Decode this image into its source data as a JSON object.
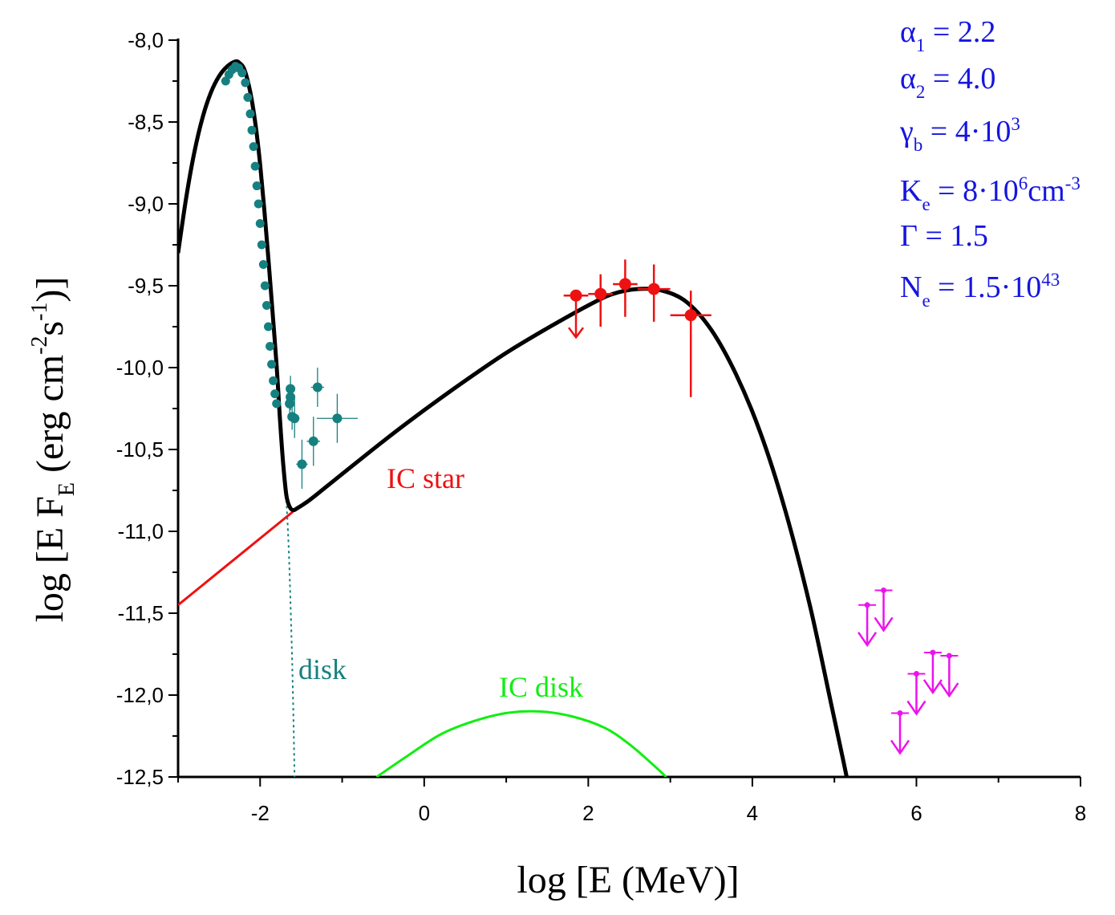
{
  "chart_data": {
    "type": "line",
    "title": "",
    "xlabel": "log [E (MeV)]",
    "ylabel": "log [E F_E (erg cm^-2 s^-1)]",
    "xlim": [
      -3,
      8
    ],
    "ylim": [
      -12.5,
      -8.0
    ],
    "x_ticks": [
      -2,
      0,
      2,
      4,
      6,
      8
    ],
    "y_ticks": [
      -8.0,
      -8.5,
      -9.0,
      -9.5,
      -10.0,
      -10.5,
      -11.0,
      -11.5,
      -12.0,
      -12.5
    ],
    "x_tick_labels": [
      "-2",
      "0",
      "2",
      "4",
      "6",
      "8"
    ],
    "y_tick_labels": [
      "-8,0",
      "-8,5",
      "-9,0",
      "-9,5",
      "-10,0",
      "-10,5",
      "-11,0",
      "-11,5",
      "-12,0",
      "-12,5"
    ],
    "grid": false,
    "ylabel_parts": {
      "p1": "log [E F",
      "p1_sub": "E",
      "p2": " (erg cm",
      "p2_sup": "-2",
      "p3": "s",
      "p3_sup": "-1",
      "p4": ")]"
    },
    "annotations": {
      "ic_star": "IC star",
      "disk": "disk",
      "ic_disk": "IC disk"
    },
    "parameters": [
      {
        "sym": "α",
        "sub": "1",
        "rest": " = 2.2"
      },
      {
        "sym": "α",
        "sub": "2",
        "rest": " = 4.0"
      },
      {
        "sym": "γ",
        "sub": "b",
        "rest": " = 4·10",
        "sup": "3"
      },
      {
        "sym": "K",
        "sub": "e",
        "rest": " = 8·10",
        "sup": "6",
        "rest2": "cm",
        "sup2": "-3"
      },
      {
        "sym": "Γ",
        "rest": " = 1.5"
      },
      {
        "sym": "N",
        "sub": "e",
        "rest": " = 1.5·10",
        "sup": "43"
      }
    ],
    "colors": {
      "total": "#000000",
      "ic_star": "#ee1111",
      "ic_disk": "#11ee11",
      "disk": "#168080",
      "points_gamma": "#ee1111",
      "upper_limits": "#ee11ee",
      "params": "#1515e0"
    },
    "series": [
      {
        "name": "total",
        "color": "#000000",
        "points": [
          [
            -3.0,
            -9.3
          ],
          [
            -2.9,
            -8.96
          ],
          [
            -2.8,
            -8.68
          ],
          [
            -2.7,
            -8.47
          ],
          [
            -2.6,
            -8.32
          ],
          [
            -2.5,
            -8.22
          ],
          [
            -2.4,
            -8.16
          ],
          [
            -2.3,
            -8.13
          ],
          [
            -2.25,
            -8.14
          ],
          [
            -2.2,
            -8.17
          ],
          [
            -2.15,
            -8.25
          ],
          [
            -2.1,
            -8.37
          ],
          [
            -2.05,
            -8.54
          ],
          [
            -2.0,
            -8.76
          ],
          [
            -1.95,
            -9.03
          ],
          [
            -1.9,
            -9.33
          ],
          [
            -1.85,
            -9.65
          ],
          [
            -1.8,
            -9.98
          ],
          [
            -1.76,
            -10.3
          ],
          [
            -1.72,
            -10.58
          ],
          [
            -1.68,
            -10.78
          ],
          [
            -1.64,
            -10.85
          ],
          [
            -1.6,
            -10.87
          ],
          [
            -1.55,
            -10.86
          ],
          [
            -1.4,
            -10.81
          ],
          [
            -1.2,
            -10.73
          ],
          [
            -1.0,
            -10.65
          ],
          [
            -0.5,
            -10.45
          ],
          [
            0.0,
            -10.26
          ],
          [
            0.5,
            -10.08
          ],
          [
            1.0,
            -9.91
          ],
          [
            1.5,
            -9.76
          ],
          [
            2.0,
            -9.62
          ],
          [
            2.3,
            -9.55
          ],
          [
            2.6,
            -9.52
          ],
          [
            2.9,
            -9.53
          ],
          [
            3.2,
            -9.6
          ],
          [
            3.5,
            -9.77
          ],
          [
            3.8,
            -10.04
          ],
          [
            4.1,
            -10.4
          ],
          [
            4.4,
            -10.87
          ],
          [
            4.7,
            -11.45
          ],
          [
            4.95,
            -12.03
          ],
          [
            5.1,
            -12.38
          ],
          [
            5.15,
            -12.5
          ]
        ]
      },
      {
        "name": "IC star",
        "color": "#ee1111",
        "points": [
          [
            -3.0,
            -11.45
          ],
          [
            -1.6,
            -10.88
          ]
        ]
      },
      {
        "name": "IC disk",
        "color": "#11ee11",
        "points": [
          [
            -0.58,
            -12.5
          ],
          [
            -0.2,
            -12.37
          ],
          [
            0.2,
            -12.24
          ],
          [
            0.6,
            -12.16
          ],
          [
            1.0,
            -12.11
          ],
          [
            1.4,
            -12.1
          ],
          [
            1.8,
            -12.13
          ],
          [
            2.2,
            -12.2
          ],
          [
            2.5,
            -12.3
          ],
          [
            2.8,
            -12.43
          ],
          [
            2.95,
            -12.5
          ]
        ]
      },
      {
        "name": "disk",
        "color": "#168080",
        "dashed": true,
        "points": [
          [
            -2.4,
            -8.2
          ],
          [
            -2.3,
            -8.15
          ],
          [
            -2.2,
            -8.19
          ],
          [
            -2.1,
            -8.33
          ],
          [
            -2.0,
            -8.7
          ],
          [
            -1.9,
            -9.3
          ],
          [
            -1.8,
            -9.95
          ],
          [
            -1.72,
            -10.5
          ],
          [
            -1.66,
            -11.0
          ],
          [
            -1.62,
            -11.6
          ],
          [
            -1.6,
            -12.0
          ],
          [
            -1.58,
            -12.5
          ]
        ]
      }
    ],
    "data_points": {
      "optical": [
        [
          -2.42,
          -8.25
        ],
        [
          -2.38,
          -8.21
        ],
        [
          -2.34,
          -8.18
        ],
        [
          -2.3,
          -8.16
        ],
        [
          -2.26,
          -8.17
        ],
        [
          -2.22,
          -8.2
        ],
        [
          -2.18,
          -8.26
        ],
        [
          -2.15,
          -8.35
        ],
        [
          -2.12,
          -8.45
        ],
        [
          -2.1,
          -8.55
        ],
        [
          -2.08,
          -8.65
        ],
        [
          -2.06,
          -8.77
        ],
        [
          -2.04,
          -8.89
        ],
        [
          -2.02,
          -9.0
        ],
        [
          -2.0,
          -9.12
        ],
        [
          -1.98,
          -9.25
        ],
        [
          -1.96,
          -9.37
        ],
        [
          -1.94,
          -9.5
        ],
        [
          -1.92,
          -9.62
        ],
        [
          -1.9,
          -9.75
        ],
        [
          -1.88,
          -9.87
        ],
        [
          -1.86,
          -9.98
        ],
        [
          -1.84,
          -10.08
        ],
        [
          -1.82,
          -10.16
        ],
        [
          -1.8,
          -10.22
        ]
      ],
      "xray": [
        {
          "x": -1.63,
          "y": -10.13,
          "xerr": 0.05,
          "yerr": 0.08
        },
        {
          "x": -1.63,
          "y": -10.18,
          "xerr": 0.05,
          "yerr": 0.08
        },
        {
          "x": -1.64,
          "y": -10.22,
          "xerr": 0.05,
          "yerr": 0.08
        },
        {
          "x": -1.61,
          "y": -10.3,
          "xerr": 0.05,
          "yerr": 0.08
        },
        {
          "x": -1.58,
          "y": -10.31,
          "xerr": 0.06,
          "yerr": 0.12
        },
        {
          "x": -1.49,
          "y": -10.59,
          "xerr": 0.07,
          "yerr": 0.15
        },
        {
          "x": -1.35,
          "y": -10.45,
          "xerr": 0.08,
          "yerr": 0.15
        },
        {
          "x": -1.3,
          "y": -10.12,
          "xerr": 0.08,
          "yerr": 0.12
        },
        {
          "x": -1.06,
          "y": -10.31,
          "xerr": 0.25,
          "yerr": 0.15
        }
      ],
      "gamma": [
        {
          "x": 1.85,
          "y": -9.56,
          "xerr": 0.15,
          "yerr_up": 0,
          "yerr_down": 0,
          "upper_limit": true
        },
        {
          "x": 2.15,
          "y": -9.55,
          "xerr": 0.15,
          "yerr_up": 0.12,
          "yerr_down": 0.2
        },
        {
          "x": 2.45,
          "y": -9.49,
          "xerr": 0.15,
          "yerr_up": 0.15,
          "yerr_down": 0.2
        },
        {
          "x": 2.8,
          "y": -9.52,
          "xerr": 0.2,
          "yerr_up": 0.15,
          "yerr_down": 0.2
        },
        {
          "x": 3.25,
          "y": -9.68,
          "xerr": 0.25,
          "yerr_up": 0.15,
          "yerr_down": 0.5
        }
      ],
      "upper_limits": [
        {
          "x": 5.4,
          "y": -11.45
        },
        {
          "x": 5.6,
          "y": -11.36
        },
        {
          "x": 5.8,
          "y": -12.11
        },
        {
          "x": 6.0,
          "y": -11.87
        },
        {
          "x": 6.2,
          "y": -11.74
        },
        {
          "x": 6.4,
          "y": -11.76
        }
      ]
    }
  }
}
